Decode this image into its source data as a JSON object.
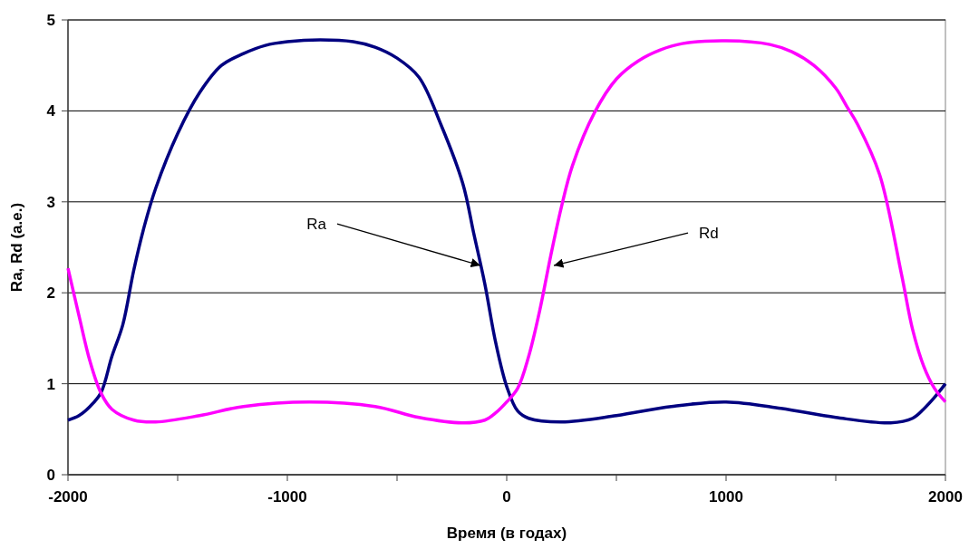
{
  "chart_data": {
    "type": "line",
    "xlabel": "Время (в годах)",
    "ylabel": "Ra, Rd (а.е.)",
    "xlim": [
      -2000,
      2000
    ],
    "ylim": [
      0,
      5
    ],
    "xticks": [
      -2000,
      {
        "value": -1500,
        "label": null
      },
      -1000,
      {
        "value": -500,
        "label": null
      },
      0,
      {
        "value": 500,
        "label": null
      },
      1000,
      {
        "value": 1500,
        "label": null
      },
      2000
    ],
    "yticks": [
      0,
      1,
      2,
      3,
      4,
      5
    ],
    "grid": "y",
    "marker": "none",
    "line_style": "solid",
    "annotations": [
      {
        "text": "Ra",
        "x": -120,
        "y": 2.3
      },
      {
        "text": "Rd",
        "x": 215,
        "y": 2.3
      }
    ],
    "series": [
      {
        "color": "#000080",
        "x": [
          -2000,
          -1950,
          -1900,
          -1850,
          -1800,
          -1750,
          -1700,
          -1650,
          -1600,
          -1500,
          -1400,
          -1300,
          -1200,
          -1100,
          -1000,
          -850,
          -700,
          -600,
          -500,
          -400,
          -300,
          -200,
          -150,
          -100,
          -50,
          0,
          50,
          100,
          250,
          500,
          750,
          1000,
          1250,
          1500,
          1750,
          1850,
          1900,
          1950,
          2000
        ],
        "values": [
          0.6,
          0.65,
          0.75,
          0.9,
          1.3,
          1.65,
          2.25,
          2.75,
          3.15,
          3.75,
          4.2,
          4.5,
          4.63,
          4.72,
          4.76,
          4.78,
          4.76,
          4.7,
          4.58,
          4.37,
          3.85,
          3.2,
          2.65,
          2.1,
          1.45,
          0.97,
          0.7,
          0.62,
          0.58,
          0.65,
          0.75,
          0.8,
          0.73,
          0.63,
          0.57,
          0.62,
          0.72,
          0.85,
          1.0
        ]
      },
      {
        "color": "#ff00ff",
        "x": [
          -2000,
          -1950,
          -1900,
          -1850,
          -1800,
          -1700,
          -1600,
          -1400,
          -1200,
          -900,
          -600,
          -400,
          -200,
          -100,
          -50,
          0,
          50,
          100,
          150,
          200,
          250,
          300,
          400,
          500,
          600,
          700,
          800,
          1000,
          1200,
          1300,
          1400,
          1500,
          1550,
          1600,
          1700,
          1800,
          1850,
          1900,
          1950,
          2000
        ],
        "values": [
          2.27,
          1.75,
          1.25,
          0.9,
          0.72,
          0.6,
          0.58,
          0.65,
          0.75,
          0.8,
          0.75,
          0.63,
          0.57,
          0.6,
          0.68,
          0.8,
          0.95,
          1.3,
          1.8,
          2.4,
          2.95,
          3.4,
          3.98,
          4.35,
          4.55,
          4.67,
          4.74,
          4.77,
          4.73,
          4.65,
          4.5,
          4.25,
          4.05,
          3.85,
          3.3,
          2.2,
          1.6,
          1.2,
          0.95,
          0.8
        ]
      }
    ]
  }
}
